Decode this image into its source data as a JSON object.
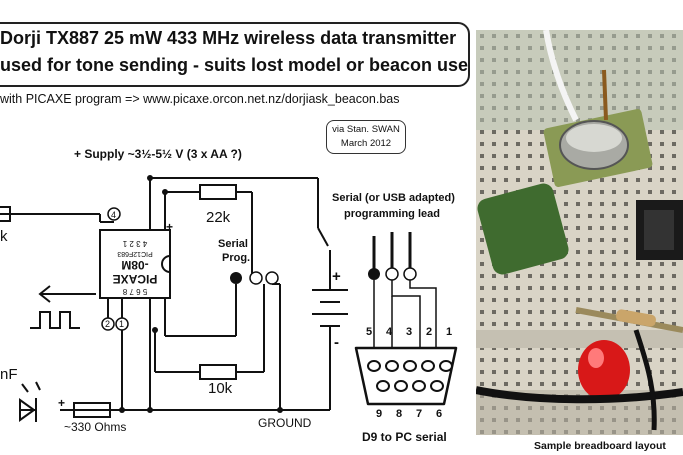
{
  "title": {
    "line1": "Dorji TX887 25 mW 433 MHz  wireless data transmitter",
    "line2": "used for tone sending - suits lost model or beacon use"
  },
  "program_note": "with PICAXE program => www.picaxe.orcon.net.nz/dorjiask_beacon.bas",
  "credit": {
    "line1": "via  Stan. SWAN",
    "line2": "March 2012"
  },
  "labels": {
    "supply": "+ Supply ~3½-5½ V  (3 x AA ?)",
    "resistor_22k": "22k",
    "resistor_10k": "10k",
    "resistor_330": "~330 Ohms",
    "k_partial": "k",
    "nf_partial": "nF",
    "serial_prog": "Serial",
    "serial_prog2": "Prog.",
    "serial_lead1": "Serial (or USB adapted)",
    "serial_lead2": "programming lead",
    "ground": "GROUND",
    "d9": "D9 to PC serial",
    "chip_line1": "PICAXE",
    "chip_line2": "-08M",
    "chip_line3": "PIC12F683",
    "pins_top": "4 3 2 1",
    "pins_bottom": "5 6 7 8",
    "pin4": "4",
    "pin2": "2",
    "pin1": "1",
    "plus": "+",
    "minus": "-",
    "plus_small": "+",
    "d9_top_pins": [
      "5",
      "4",
      "3",
      "2",
      "1"
    ],
    "d9_bottom_pins": [
      "9",
      "8",
      "7",
      "6"
    ]
  },
  "photo_caption": "Sample breadboard layout",
  "colors": {
    "line": "#111111",
    "breadboard": "#d9d4c6",
    "board_shadow": "#b5b0a2",
    "capacitor": "#3f6b2f",
    "led": "#d81818",
    "transmitter": "#8a9a55"
  }
}
